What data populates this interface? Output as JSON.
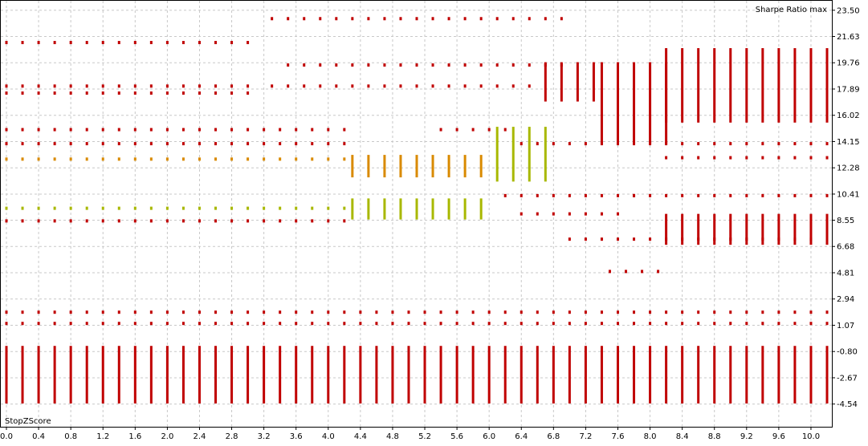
{
  "chart_data": {
    "type": "scatter",
    "title": "Sharpe Ratio max",
    "xlabel": "StopZScore",
    "ylabel": "",
    "x_ticks": [
      0.0,
      0.4,
      0.8,
      1.2,
      1.6,
      2.0,
      2.4,
      2.8,
      3.2,
      3.6,
      4.0,
      4.4,
      4.8,
      5.2,
      5.6,
      6.0,
      6.4,
      6.8,
      7.2,
      7.6,
      8.0,
      8.4,
      8.8,
      9.2,
      9.6,
      10.0
    ],
    "x_tick_labels": [
      "0.0",
      "0.4",
      "0.8",
      "1.2",
      "1.6",
      "2.0",
      "2.4",
      "2.8",
      "3.2",
      "3.6",
      "4.0",
      "4.4",
      "4.8",
      "5.2",
      "5.6",
      "6.0",
      "6.4",
      "6.8",
      "7.2",
      "7.6",
      "8.0",
      "8.4",
      "8.8",
      "9.2",
      "9.6",
      "10.0"
    ],
    "y_ticks": [
      23.5,
      21.63,
      19.76,
      17.89,
      16.02,
      14.15,
      12.28,
      10.41,
      8.55,
      6.68,
      4.81,
      2.94,
      1.07,
      -0.8,
      -2.67,
      -4.54
    ],
    "y_tick_labels": [
      "23.50",
      "21.63",
      "19.76",
      "17.89",
      "16.02",
      "14.15",
      "12.28",
      "10.41",
      "8.55",
      "6.68",
      "4.81",
      "2.94",
      "1.07",
      "-0.80",
      "-2.67",
      "-4.54"
    ],
    "xlim": [
      0.0,
      10.2
    ],
    "ylim": [
      -4.9,
      24.0
    ],
    "grid": true,
    "colors": {
      "low": "#c00000",
      "mid": "#d98a00",
      "high": "#a8b800"
    },
    "x_step": 0.2,
    "bands": [
      {
        "from_x": 0.0,
        "to_x": 3.1,
        "y": 21.2,
        "color": "low"
      },
      {
        "from_x": 0.0,
        "to_x": 3.1,
        "y": 18.1,
        "color": "low"
      },
      {
        "from_x": 0.0,
        "to_x": 3.1,
        "y": 17.6,
        "color": "low"
      },
      {
        "from_x": 0.0,
        "to_x": 4.3,
        "y": 15.0,
        "color": "low"
      },
      {
        "from_x": 0.0,
        "to_x": 4.3,
        "y": 14.0,
        "color": "low"
      },
      {
        "from_x": 0.0,
        "to_x": 4.3,
        "y": 12.9,
        "color": "mid"
      },
      {
        "from_x": 0.0,
        "to_x": 4.3,
        "y": 9.4,
        "color": "high"
      },
      {
        "from_x": 0.0,
        "to_x": 4.3,
        "y": 8.5,
        "color": "low"
      },
      {
        "from_x": 0.0,
        "to_x": 10.2,
        "y": 2.0,
        "color": "low"
      },
      {
        "from_x": 0.0,
        "to_x": 10.2,
        "y": 1.2,
        "color": "low"
      },
      {
        "from_x": 3.3,
        "to_x": 7.0,
        "y": 22.9,
        "color": "low"
      },
      {
        "from_x": 3.5,
        "to_x": 7.0,
        "y": 19.6,
        "color": "low"
      },
      {
        "from_x": 3.3,
        "to_x": 6.6,
        "y": 18.1,
        "color": "low"
      },
      {
        "from_x": 5.4,
        "to_x": 6.2,
        "y": 15.0,
        "color": "low"
      },
      {
        "from_x": 6.4,
        "to_x": 7.6,
        "y": 14.0,
        "color": "low"
      },
      {
        "from_x": 6.2,
        "to_x": 7.8,
        "y": 10.3,
        "color": "low"
      },
      {
        "from_x": 6.4,
        "to_x": 7.6,
        "y": 9.0,
        "color": "low"
      },
      {
        "from_x": 7.0,
        "to_x": 10.2,
        "y": 7.2,
        "color": "low"
      },
      {
        "from_x": 7.5,
        "to_x": 8.1,
        "y": 4.9,
        "color": "low"
      },
      {
        "from_x": 7.8,
        "to_x": 10.2,
        "y": 10.3,
        "color": "low"
      },
      {
        "from_x": 7.8,
        "to_x": 10.2,
        "y": 14.0,
        "color": "low"
      },
      {
        "from_x": 8.2,
        "to_x": 10.2,
        "y": 13.0,
        "color": "low"
      }
    ],
    "columns": [
      {
        "from_x": 4.3,
        "to_x": 6.0,
        "y_from": 8.6,
        "y_to": 10.1,
        "color": "high"
      },
      {
        "from_x": 4.3,
        "to_x": 6.0,
        "y_from": 11.6,
        "y_to": 13.2,
        "color": "mid"
      },
      {
        "from_x": 6.1,
        "to_x": 6.7,
        "y_from": 11.3,
        "y_to": 15.2,
        "color": "high"
      },
      {
        "from_x": 0.0,
        "to_x": 10.2,
        "y_from": -4.5,
        "y_to": -0.4,
        "color": "low"
      },
      {
        "from_x": 6.7,
        "to_x": 7.4,
        "y_from": 17.0,
        "y_to": 19.8,
        "color": "low"
      },
      {
        "from_x": 7.4,
        "to_x": 8.2,
        "y_from": 14.0,
        "y_to": 19.8,
        "color": "low"
      },
      {
        "from_x": 8.2,
        "to_x": 10.2,
        "y_from": 15.5,
        "y_to": 20.8,
        "color": "low"
      },
      {
        "from_x": 8.2,
        "to_x": 10.2,
        "y_from": 6.8,
        "y_to": 9.0,
        "color": "low"
      }
    ]
  }
}
